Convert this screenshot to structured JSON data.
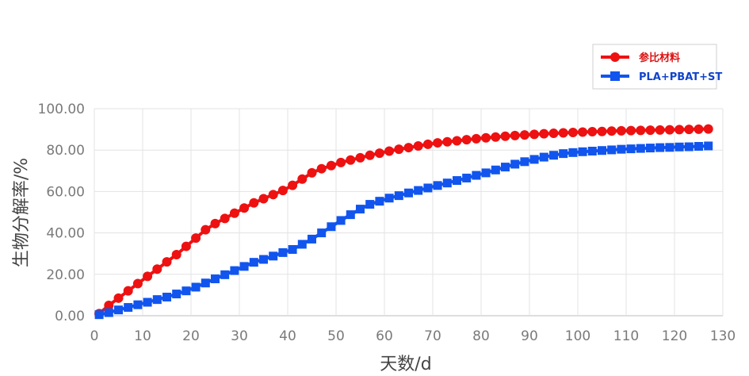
{
  "chart_data": {
    "type": "line",
    "xlabel": "天数/d",
    "ylabel": "生物分解率/%",
    "xlim": [
      0,
      130
    ],
    "ylim": [
      0,
      100
    ],
    "x_ticks": [
      "0",
      "10",
      "20",
      "30",
      "40",
      "50",
      "60",
      "70",
      "80",
      "90",
      "100",
      "110",
      "120",
      "130"
    ],
    "y_ticks": [
      "0.00",
      "20.00",
      "40.00",
      "60.00",
      "80.00",
      "100.00"
    ],
    "grid": true,
    "legend_position": "top-right",
    "series": [
      {
        "name": "参比材料",
        "color": "#ee1111",
        "marker": "circle",
        "x": [
          1,
          3,
          5,
          7,
          9,
          11,
          13,
          15,
          17,
          19,
          21,
          23,
          25,
          27,
          29,
          31,
          33,
          35,
          37,
          39,
          41,
          43,
          45,
          47,
          49,
          51,
          53,
          55,
          57,
          59,
          61,
          63,
          65,
          67,
          69,
          71,
          73,
          75,
          77,
          79,
          81,
          83,
          85,
          87,
          89,
          91,
          93,
          95,
          97,
          99,
          101,
          103,
          105,
          107,
          109,
          111,
          113,
          115,
          117,
          119,
          121,
          123,
          125,
          127
        ],
        "y": [
          1.0,
          5.0,
          8.5,
          12.0,
          15.5,
          19.0,
          22.5,
          26.0,
          29.5,
          33.5,
          37.5,
          41.5,
          44.5,
          47.0,
          49.5,
          52.0,
          54.5,
          56.5,
          58.5,
          60.5,
          63.0,
          66.0,
          69.0,
          71.0,
          72.5,
          74.0,
          75.2,
          76.3,
          77.5,
          78.5,
          79.5,
          80.4,
          81.2,
          82.0,
          82.8,
          83.5,
          84.0,
          84.5,
          85.0,
          85.5,
          85.9,
          86.3,
          86.7,
          87.0,
          87.3,
          87.6,
          87.9,
          88.1,
          88.3,
          88.5,
          88.7,
          88.9,
          89.0,
          89.2,
          89.3,
          89.4,
          89.5,
          89.6,
          89.7,
          89.8,
          89.9,
          90.0,
          90.1,
          90.2
        ]
      },
      {
        "name": "PLA+PBAT+ST",
        "color": "#1155ee",
        "marker": "square",
        "x": [
          1,
          3,
          5,
          7,
          9,
          11,
          13,
          15,
          17,
          19,
          21,
          23,
          25,
          27,
          29,
          31,
          33,
          35,
          37,
          39,
          41,
          43,
          45,
          47,
          49,
          51,
          53,
          55,
          57,
          59,
          61,
          63,
          65,
          67,
          69,
          71,
          73,
          75,
          77,
          79,
          81,
          83,
          85,
          87,
          89,
          91,
          93,
          95,
          97,
          99,
          101,
          103,
          105,
          107,
          109,
          111,
          113,
          115,
          117,
          119,
          121,
          123,
          125,
          127
        ],
        "y": [
          0.5,
          1.5,
          2.8,
          4.0,
          5.3,
          6.5,
          7.8,
          9.0,
          10.5,
          12.0,
          13.8,
          15.8,
          17.8,
          19.8,
          21.8,
          23.8,
          25.8,
          27.2,
          28.8,
          30.5,
          32.0,
          34.5,
          37.0,
          40.0,
          43.0,
          46.0,
          48.8,
          51.5,
          53.8,
          55.3,
          56.8,
          58.0,
          59.3,
          60.5,
          61.7,
          62.9,
          64.1,
          65.3,
          66.5,
          67.8,
          69.0,
          70.4,
          71.8,
          73.2,
          74.4,
          75.5,
          76.6,
          77.5,
          78.3,
          78.8,
          79.2,
          79.5,
          79.8,
          80.1,
          80.4,
          80.6,
          80.8,
          81.0,
          81.2,
          81.3,
          81.5,
          81.6,
          81.8,
          82.0
        ]
      }
    ]
  }
}
